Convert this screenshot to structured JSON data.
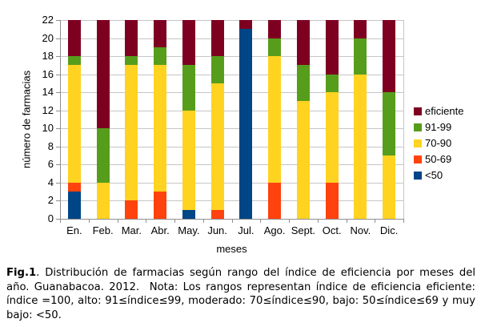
{
  "chart_data": {
    "type": "bar",
    "stacked": true,
    "xlabel": "meses",
    "ylabel": "número de farmacias",
    "ylim": [
      0,
      22
    ],
    "yticks": [
      0,
      2,
      4,
      6,
      8,
      10,
      12,
      14,
      16,
      18,
      20,
      22
    ],
    "grid": true,
    "legend_position": "right",
    "categories": [
      "En.",
      "Feb.",
      "Mar.",
      "Abr.",
      "May.",
      "Jun.",
      "Jul.",
      "Ago.",
      "Sept.",
      "Oct.",
      "Nov.",
      "Dic."
    ],
    "series": [
      {
        "name": "<50",
        "color": "#004586",
        "values": [
          3,
          0,
          0,
          0,
          1,
          0,
          21,
          0,
          0,
          0,
          0,
          0
        ]
      },
      {
        "name": "50-69",
        "color": "#FF420E",
        "values": [
          1,
          0,
          2,
          3,
          0,
          1,
          0,
          4,
          0,
          4,
          0,
          0
        ]
      },
      {
        "name": "70-90",
        "color": "#FFD320",
        "values": [
          13,
          4,
          15,
          14,
          11,
          14,
          0,
          14,
          13,
          10,
          16,
          7
        ]
      },
      {
        "name": "91-99",
        "color": "#579D1C",
        "values": [
          1,
          6,
          1,
          2,
          5,
          3,
          0,
          2,
          4,
          2,
          4,
          7
        ]
      },
      {
        "name": "eficiente",
        "color": "#7E0021",
        "values": [
          4,
          12,
          4,
          3,
          5,
          4,
          1,
          2,
          5,
          6,
          2,
          8
        ]
      }
    ],
    "legend_order": [
      "eficiente",
      "91-99",
      "70-90",
      "50-69",
      "<50"
    ]
  },
  "caption": {
    "fig_label": "Fig.1",
    "text": ". Distribución de farmacias según rango del índice de eficiencia por meses del año. Guanabacoa. 2012.  Nota: Los rangos representan índice de eficiencia eficiente: índice =100, alto: 91≤índice≤99, moderado: 70≤índice≤90, bajo: 50≤índice≤69 y muy bajo: <50."
  }
}
